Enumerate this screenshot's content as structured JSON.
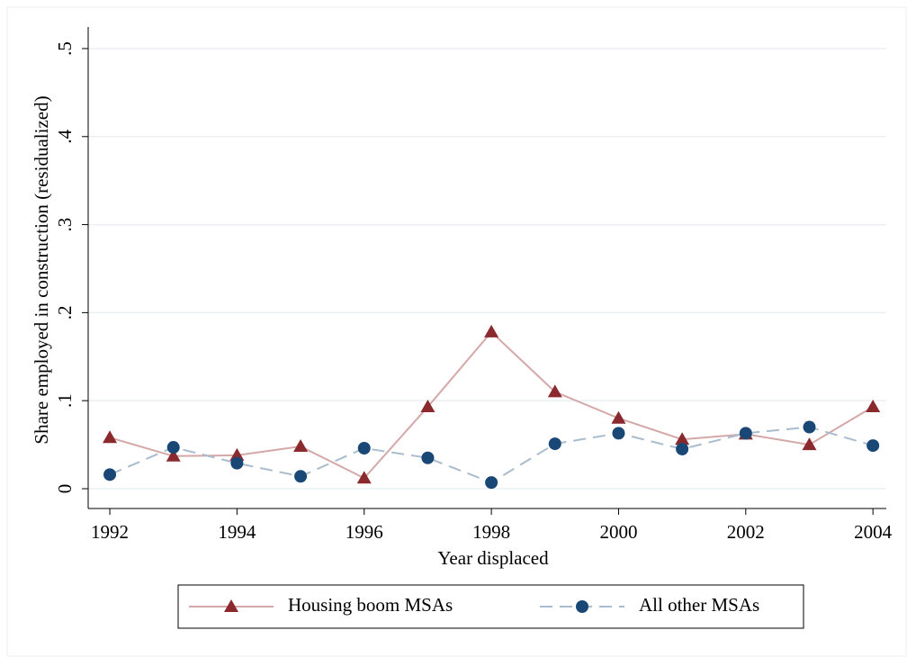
{
  "chart_data": {
    "type": "line",
    "xlabel": "Year displaced",
    "ylabel": "Share employed in construction (residualized)",
    "x": [
      1992,
      1993,
      1994,
      1995,
      1996,
      1997,
      1998,
      1999,
      2000,
      2001,
      2002,
      2003,
      2004
    ],
    "series": [
      {
        "name": "Housing boom MSAs",
        "color": "#d4a8a8",
        "marker_color": "#8b2a2e",
        "marker": "triangle",
        "dash": "solid",
        "values": [
          0.058,
          0.037,
          0.038,
          0.048,
          0.012,
          0.093,
          0.178,
          0.11,
          0.08,
          0.056,
          0.062,
          0.05,
          0.093
        ]
      },
      {
        "name": "All other MSAs",
        "color": "#a9bccd",
        "marker_color": "#1a4876",
        "marker": "circle",
        "dash": "dashed",
        "values": [
          0.016,
          0.047,
          0.029,
          0.014,
          0.046,
          0.035,
          0.007,
          0.051,
          0.063,
          0.045,
          0.063,
          0.07,
          0.049
        ]
      }
    ],
    "xlim": [
      1991.66,
      2004.21
    ],
    "xticks": [
      1992,
      1994,
      1996,
      1998,
      2000,
      2002,
      2004
    ],
    "ylim": [
      -0.0225,
      0.5245
    ],
    "yticks": [
      0,
      {
        "value": 0.1,
        "label": ".1"
      },
      {
        "value": 0.2,
        "label": ".2"
      },
      {
        "value": 0.3,
        "label": ".3"
      },
      {
        "value": 0.4,
        "label": ".4"
      },
      {
        "value": 0.5,
        "label": ".5"
      }
    ],
    "grid": true,
    "legend": "bottom"
  }
}
